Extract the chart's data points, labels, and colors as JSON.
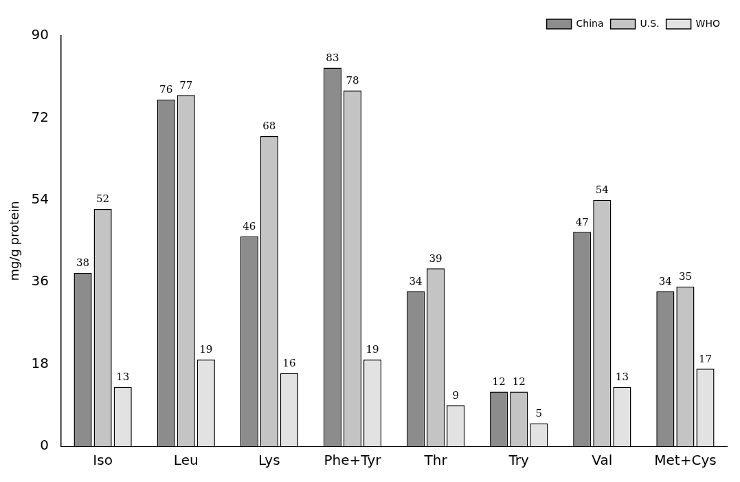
{
  "chart_data": {
    "type": "bar",
    "ylabel": "mg/g protein",
    "categories": [
      "Iso",
      "Leu",
      "Lys",
      "Phe+Tyr",
      "Thr",
      "Try",
      "Val",
      "Met+Cys"
    ],
    "series": [
      {
        "name": "China",
        "color": "#8c8c8c",
        "values": [
          38,
          76,
          46,
          83,
          34,
          12,
          47,
          34
        ]
      },
      {
        "name": "U.S.",
        "color": "#c4c4c4",
        "values": [
          52,
          77,
          68,
          78,
          39,
          12,
          54,
          35
        ]
      },
      {
        "name": "WHO",
        "color": "#e2e2e2",
        "values": [
          13,
          19,
          16,
          19,
          9,
          5,
          13,
          17
        ]
      }
    ],
    "ylim": [
      0,
      90
    ],
    "yticks": [
      0,
      18,
      36,
      54,
      72,
      90
    ],
    "grid": false,
    "legend": "top right",
    "data_labels": true
  }
}
